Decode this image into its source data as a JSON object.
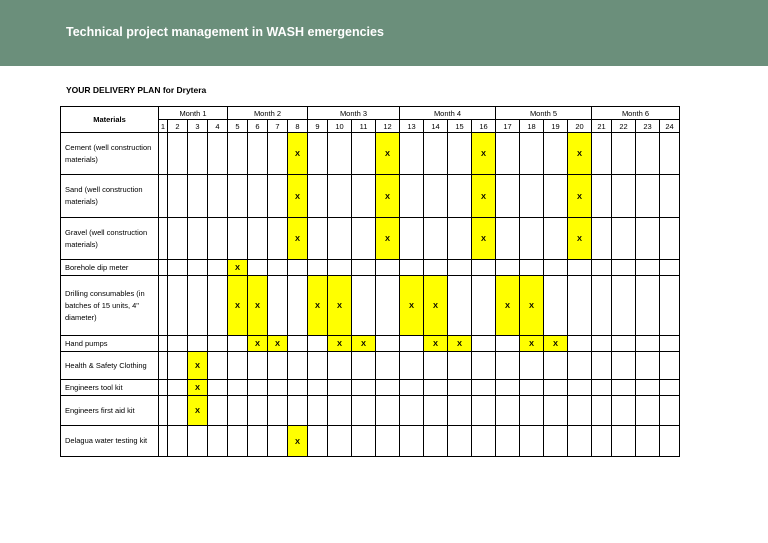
{
  "header": {
    "title": "Technical project management in WASH emergencies"
  },
  "subtitle": "YOUR DELIVERY PLAN for Drytera",
  "table": {
    "materials_header": "Materials",
    "months": [
      "Month 1",
      "Month 2",
      "Month 3",
      "Month 4",
      "Month 5",
      "Month 6"
    ],
    "weeks": [
      "1",
      "2",
      "3",
      "4",
      "5",
      "6",
      "7",
      "8",
      "9",
      "10",
      "11",
      "12",
      "13",
      "14",
      "15",
      "16",
      "17",
      "18",
      "19",
      "20",
      "21",
      "22",
      "23",
      "24"
    ],
    "mark": "X",
    "highlight_color": "#ffff00",
    "rows": [
      {
        "label": "Cement (well construction materials)",
        "marked_weeks": [
          8,
          12,
          16,
          20
        ]
      },
      {
        "label": "Sand (well construction materials)",
        "marked_weeks": [
          8,
          12,
          16,
          20
        ]
      },
      {
        "label": "Gravel (well construction materials)",
        "marked_weeks": [
          8,
          12,
          16,
          20
        ]
      },
      {
        "label": "Borehole dip meter",
        "marked_weeks": [
          5
        ]
      },
      {
        "label": "Drilling consumables (in batches of 15 units, 4\" diameter)",
        "marked_weeks": [
          5,
          6,
          9,
          10,
          13,
          14,
          17,
          18
        ]
      },
      {
        "label": "Hand pumps",
        "marked_weeks": [
          6,
          7,
          10,
          11,
          14,
          15,
          18,
          19
        ]
      },
      {
        "label": "Health & Safety Clothing",
        "marked_weeks": [
          3
        ]
      },
      {
        "label": "Engineers tool kit",
        "marked_weeks": [
          3
        ]
      },
      {
        "label": "Engineers first aid kit",
        "marked_weeks": [
          3
        ]
      },
      {
        "label": "Delagua water testing kit",
        "marked_weeks": [
          8
        ]
      }
    ]
  }
}
